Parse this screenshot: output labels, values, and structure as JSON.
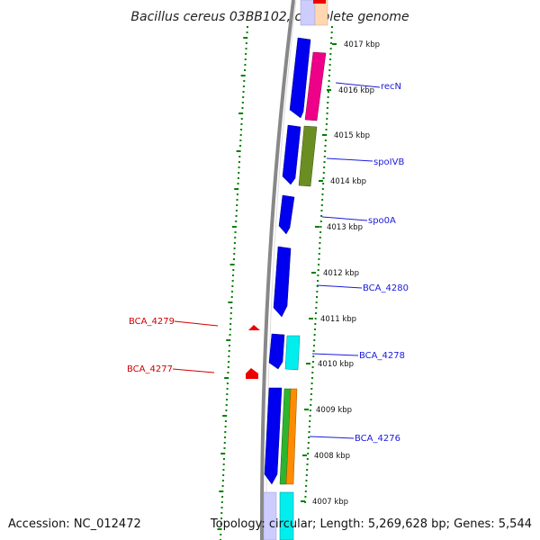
{
  "map": {
    "title": "Bacillus cereus 03BB102, complete genome",
    "accession": "Accession: NC_012472",
    "topology": "Topology: circular; Length: 5,269,628 bp; Genes: 5,544",
    "kbp_labels": [
      "4017 kbp",
      "4016 kbp",
      "4015 kbp",
      "4014 kbp",
      "4013 kbp",
      "4012 kbp",
      "4011 kbp",
      "4010 kbp",
      "4009 kbp",
      "4008 kbp",
      "4007 kbp"
    ],
    "forward_genes": [
      "recN",
      "spoIVB",
      "spo0A",
      "BCA_4280",
      "BCA_4278",
      "BCA_4276"
    ],
    "reverse_genes": [
      "BCA_4279",
      "BCA_4277"
    ],
    "colors": {
      "cds": "#0000ee",
      "backbone": "#888888",
      "feature_pink": "#ee0088",
      "feature_olive": "#6b8e23",
      "feature_cyan": "#00eeee",
      "feature_green": "#2db52d",
      "feature_orange": "#ff8c00",
      "reverse_strand": "#ee0000",
      "gc_track": "#008000"
    }
  }
}
